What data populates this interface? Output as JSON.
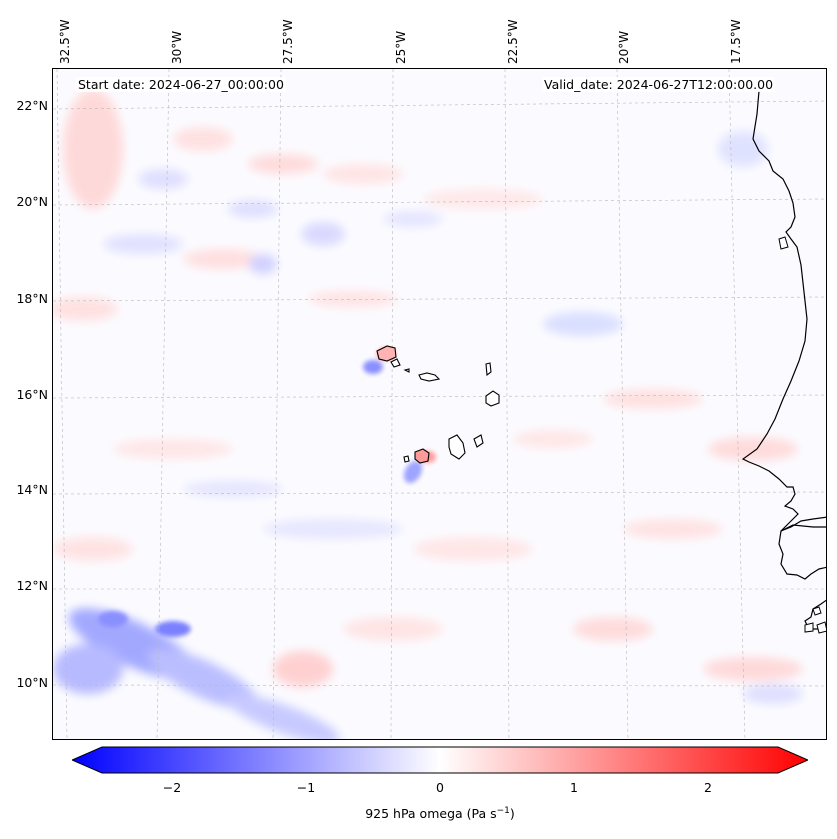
{
  "header": {
    "start_date": "Start date: 2024-06-27_00:00:00",
    "valid_date": "Valid_date: 2024-06-27T12:00:00.00"
  },
  "lon_ticks": [
    "32.5°W",
    "30°W",
    "27.5°W",
    "25°W",
    "22.5°W",
    "20°W",
    "17.5°W"
  ],
  "lat_ticks": [
    "22°N",
    "20°N",
    "18°N",
    "16°N",
    "14°N",
    "12°N",
    "10°N"
  ],
  "colorbar": {
    "ticks": [
      "−2",
      "−1",
      "0",
      "1",
      "2"
    ],
    "label_prefix": "925 hPa omega (Pa s",
    "label_exp": "−1",
    "label_suffix": ")",
    "range": [
      -2.7,
      2.7
    ],
    "colors": {
      "neg": "#0000ff",
      "mid": "#ffffff",
      "pos": "#ff0000"
    }
  },
  "map": {
    "field": "925 hPa omega",
    "colors": {
      "coast": "#000000",
      "grid": "#b0b0b0",
      "ascent": "#5a64ff",
      "descent": "#ff6e6e"
    }
  }
}
